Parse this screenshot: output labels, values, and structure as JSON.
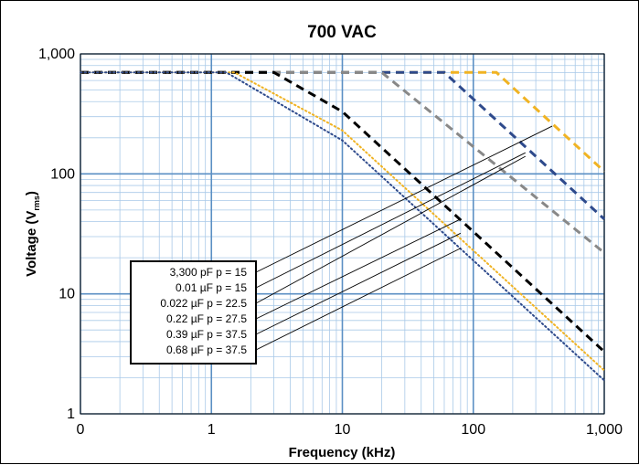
{
  "chart_data": {
    "type": "line",
    "title": "700 VAC",
    "xlabel": "Frequency (kHz)",
    "ylabel": {
      "prefix": "Voltage (V",
      "sub": "rms",
      "suffix": ")"
    },
    "x_scale": "log",
    "y_scale": "log",
    "xlim": [
      0.1,
      1000
    ],
    "ylim": [
      1,
      1000
    ],
    "x_ticks": [
      {
        "value": 0.1,
        "label": "0"
      },
      {
        "value": 1,
        "label": "1"
      },
      {
        "value": 10,
        "label": "10"
      },
      {
        "value": 100,
        "label": "100"
      },
      {
        "value": 1000,
        "label": "1,000"
      }
    ],
    "y_ticks": [
      {
        "value": 1,
        "label": "1"
      },
      {
        "value": 10,
        "label": "10"
      },
      {
        "value": 100,
        "label": "100"
      },
      {
        "value": 1000,
        "label": "1,000"
      }
    ],
    "grid": true,
    "series": [
      {
        "color": "#f0b323",
        "points": [
          [
            0.1,
            700
          ],
          [
            150,
            700
          ],
          [
            1000,
            105
          ]
        ]
      },
      {
        "color": "#2e4a8c",
        "points": [
          [
            0.1,
            700
          ],
          [
            60,
            700
          ],
          [
            1000,
            42
          ]
        ]
      },
      {
        "color": "#888888",
        "points": [
          [
            0.1,
            700
          ],
          [
            20,
            700
          ],
          [
            1000,
            22
          ]
        ]
      },
      {
        "color": "#000000",
        "points": [
          [
            0.1,
            700
          ],
          [
            3,
            700
          ],
          [
            10,
            330
          ],
          [
            1000,
            3.3
          ]
        ]
      },
      {
        "color": "#f0b323",
        "dotted": true,
        "points": [
          [
            0.1,
            700
          ],
          [
            1.5,
            700
          ],
          [
            10,
            230
          ],
          [
            1000,
            2.3
          ]
        ]
      },
      {
        "color": "#2e4a8c",
        "dotted": true,
        "points": [
          [
            0.1,
            700
          ],
          [
            1.3,
            700
          ],
          [
            10,
            190
          ],
          [
            1000,
            1.9
          ]
        ]
      }
    ],
    "legend": {
      "placement": "bottom-left",
      "entries": [
        {
          "label": "3,300 pF p = 15",
          "points_to": [
            400,
            250
          ]
        },
        {
          "label": "0.01 µF p = 15",
          "points_to": [
            250,
            150
          ]
        },
        {
          "label": "0.022 µF p = 22.5",
          "points_to": [
            250,
            140
          ]
        },
        {
          "label": "0.22 µF p = 27.5",
          "points_to": [
            80,
            42
          ]
        },
        {
          "label": "0.39 µF p = 37.5",
          "points_to": [
            80,
            32
          ]
        },
        {
          "label": "0.68 µF p = 37.5",
          "points_to": [
            80,
            24
          ]
        }
      ]
    }
  }
}
